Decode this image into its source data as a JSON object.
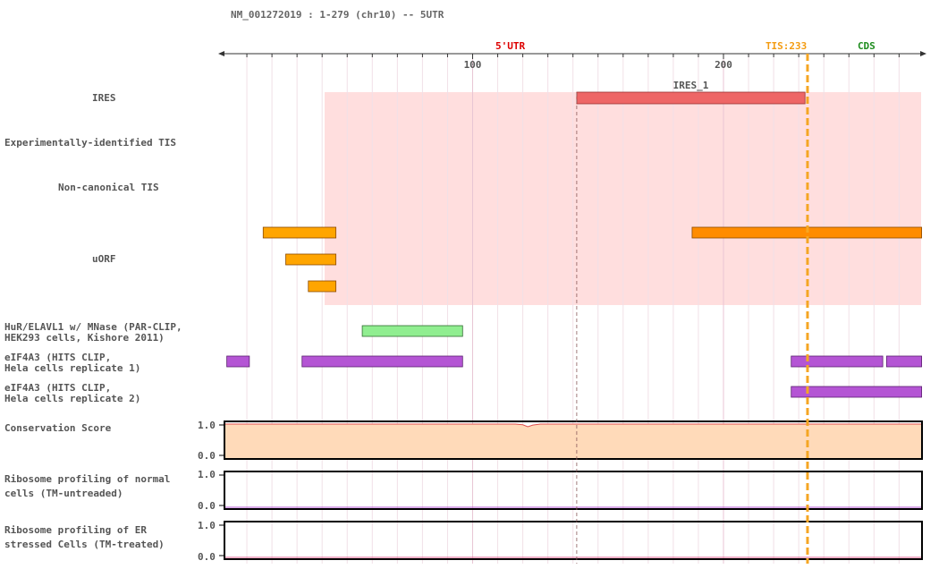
{
  "title": "NM_001272019 : 1-279 (chr10) -- 5UTR",
  "axis": {
    "start": 1,
    "end": 279,
    "major_ticks": [
      100,
      200
    ],
    "minor_step": 10
  },
  "regions": [
    {
      "label": "5'UTR",
      "color": "#dd0000",
      "pos": 115
    },
    {
      "label": "TIS:233",
      "color": "#f39c12",
      "pos": 225
    },
    {
      "label": "CDS",
      "color": "#1e8c1e",
      "pos": 257
    }
  ],
  "tis_marker": {
    "pos": 233.5,
    "color": "#f5a623"
  },
  "ires_start_marker": {
    "pos": 141.5
  },
  "ires_shade": {
    "start": 41,
    "end": 279,
    "color": "#ffdede"
  },
  "tracks": {
    "ires": {
      "label": "IRES",
      "features": [
        {
          "name": "IRES_1",
          "start": 141.5,
          "end": 232.5,
          "color": "#ee6666"
        }
      ]
    },
    "exp_tis": {
      "label": "Experimentally-identified TIS"
    },
    "noncanonical_tis": {
      "label": "Non-canonical TIS"
    },
    "uorf": {
      "label": "uORF",
      "features": [
        {
          "start": 16.5,
          "end": 45.5,
          "row": 0,
          "color": "#ffa500"
        },
        {
          "start": 187.5,
          "end": 279,
          "row": 0,
          "color": "#ff8c00"
        },
        {
          "start": 25.5,
          "end": 45.5,
          "row": 1,
          "color": "#ffa500"
        },
        {
          "start": 34.5,
          "end": 45.5,
          "row": 2,
          "color": "#ffa500"
        }
      ]
    },
    "hur": {
      "label_lines": [
        "HuR/ELAVL1 w/ MNase (PAR-CLIP,",
        "HEK293 cells, Kishore 2011)"
      ],
      "features": [
        {
          "start": 56,
          "end": 96,
          "color": "#90ee90"
        }
      ]
    },
    "eif4a3_rep1": {
      "label_lines": [
        "eIF4A3 (HITS CLIP,",
        "Hela cells replicate 1)"
      ],
      "features": [
        {
          "start": 2,
          "end": 11,
          "color": "#b455d4"
        },
        {
          "start": 32,
          "end": 96,
          "color": "#b455d4"
        },
        {
          "start": 227,
          "end": 263.5,
          "color": "#b455d4"
        },
        {
          "start": 265,
          "end": 279,
          "color": "#b455d4"
        }
      ]
    },
    "eif4a3_rep2": {
      "label_lines": [
        "eIF4A3 (HITS CLIP,",
        "Hela cells replicate 2)"
      ],
      "features": [
        {
          "start": 227,
          "end": 279,
          "color": "#b455d4"
        }
      ]
    },
    "conservation": {
      "label": "Conservation Score",
      "ymax_label": "1.0",
      "ymin_label": "0.0",
      "fill_color": "#ffdab9",
      "line_color": "#e05050",
      "values": [
        [
          1,
          1.0
        ],
        [
          117,
          1.0
        ],
        [
          120,
          0.98
        ],
        [
          122,
          0.92
        ],
        [
          124,
          0.97
        ],
        [
          127,
          1.0
        ],
        [
          279,
          1.0
        ]
      ]
    },
    "ribo_normal": {
      "label_lines": [
        "Ribosome profiling of normal",
        "cells (TM-untreaded)"
      ],
      "ymax_label": "1.0",
      "ymin_label": "0.0",
      "line_color": "#b455d4"
    },
    "ribo_er": {
      "label_lines": [
        "Ribosome profiling of ER",
        "stressed Cells (TM-treated)"
      ],
      "ymax_label": "1.0",
      "ymin_label": "0.0",
      "line_color": "#e06090"
    }
  }
}
